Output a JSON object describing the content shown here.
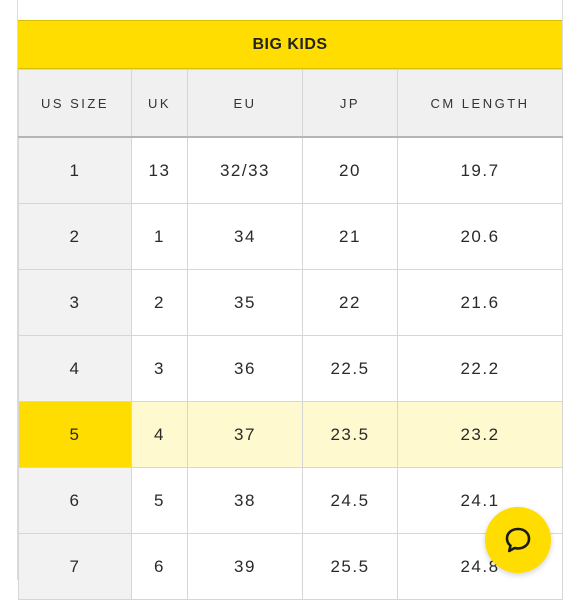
{
  "section_title": "BIG KIDS",
  "columns": [
    "US SIZE",
    "UK",
    "EU",
    "JP",
    "CM LENGTH"
  ],
  "rows": [
    {
      "us": "1",
      "uk": "13",
      "eu": "32/33",
      "jp": "20",
      "cm": "19.7"
    },
    {
      "us": "2",
      "uk": "1",
      "eu": "34",
      "jp": "21",
      "cm": "20.6"
    },
    {
      "us": "3",
      "uk": "2",
      "eu": "35",
      "jp": "22",
      "cm": "21.6"
    },
    {
      "us": "4",
      "uk": "3",
      "eu": "36",
      "jp": "22.5",
      "cm": "22.2"
    },
    {
      "us": "5",
      "uk": "4",
      "eu": "37",
      "jp": "23.5",
      "cm": "23.2"
    },
    {
      "us": "6",
      "uk": "5",
      "eu": "38",
      "jp": "24.5",
      "cm": "24.1"
    },
    {
      "us": "7",
      "uk": "6",
      "eu": "39",
      "jp": "25.5",
      "cm": "24.8"
    }
  ],
  "highlighted_row_index": 4,
  "colors": {
    "accent": "#ffdd00",
    "highlight_row": "#fff9cf",
    "header_bg": "#f0f0f0"
  },
  "chat_button": {
    "icon": "chat-bubble-icon"
  }
}
